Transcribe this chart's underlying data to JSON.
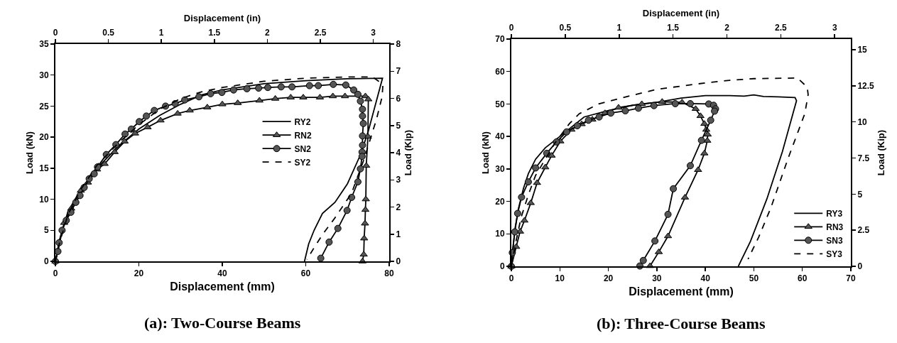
{
  "chart_data": [
    {
      "type": "line",
      "title": "(a): Two-Course Beams",
      "xlabel": "Displacement (mm)",
      "x2label": "Displacement (in)",
      "ylabel": "Load (kN)",
      "y2label": "Load (Kip)",
      "xlim": [
        0,
        80
      ],
      "xticks": [
        0,
        20,
        40,
        60,
        80
      ],
      "ylim": [
        0,
        35
      ],
      "yticks": [
        0,
        5,
        10,
        15,
        20,
        25,
        30,
        35
      ],
      "x2lim": [
        0,
        3.15
      ],
      "x2ticks": [
        0,
        0.5,
        1,
        1.5,
        2,
        2.5,
        3
      ],
      "y2lim": [
        0,
        8
      ],
      "y2ticks": [
        0,
        1,
        2,
        3,
        4,
        5,
        6,
        7,
        8
      ],
      "grid": false,
      "legend": "right",
      "series": [
        {
          "name": "RY2",
          "color": "#000000",
          "marker": "none",
          "line_style": "solid",
          "x": [
            0,
            1,
            3,
            6,
            10,
            15,
            20,
            25,
            30,
            35,
            40,
            50,
            60,
            70,
            78.4,
            77,
            75,
            73.2,
            70,
            67,
            64,
            62,
            60.7,
            59.7
          ],
          "values": [
            0,
            3.5,
            8,
            11.5,
            15,
            18.5,
            21.3,
            23.5,
            25.3,
            26.8,
            27.6,
            28.6,
            29.1,
            29.4,
            29.5,
            26,
            21,
            17.3,
            12.5,
            9.5,
            7.7,
            5,
            2.8,
            0
          ]
        },
        {
          "name": "RN2",
          "color": "#000000",
          "marker": "triangle",
          "line_style": "solid",
          "x": [
            0,
            2.1,
            3.8,
            6.1,
            7.8,
            10,
            11.8,
            14.2,
            16.6,
            19.1,
            22.1,
            25.2,
            29.3,
            32.2,
            36.4,
            40,
            43.7,
            48.9,
            52.7,
            56.4,
            59.4,
            63.4,
            66.5,
            69.4,
            74.3,
            75,
            74.9,
            74.5,
            74.4,
            74.3,
            74.2,
            74,
            73.9,
            73.6
          ],
          "values": [
            0,
            6.2,
            8.5,
            11.4,
            12.7,
            14.8,
            15.7,
            17.6,
            19.3,
            20.6,
            21.6,
            22.7,
            23.8,
            24.3,
            24.8,
            25.3,
            25.5,
            25.9,
            26.2,
            26.4,
            26.4,
            26.4,
            26.6,
            26.6,
            26.6,
            26.1,
            20.1,
            15.4,
            10,
            8.3,
            6.1,
            3.7,
            1.1,
            0
          ]
        },
        {
          "name": "SN2",
          "color": "#000000",
          "marker": "circle",
          "line_style": "solid",
          "x": [
            0,
            0.6,
            0.9,
            1.6,
            2.6,
            3.7,
            4.9,
            5.9,
            6.9,
            8.1,
            9.3,
            10.1,
            12.2,
            14.5,
            16.7,
            18.2,
            20.1,
            21.8,
            23.7,
            26.4,
            28.7,
            31,
            34.4,
            37.2,
            39.9,
            42.7,
            45.9,
            48.7,
            50.9,
            54.1,
            56.7,
            60.9,
            63,
            66.6,
            69.6,
            71.5,
            72.5,
            73.1,
            73.6,
            73.6,
            73.8,
            73.6,
            73.6,
            73.5,
            73.5,
            73.1,
            72.5,
            71,
            69.9,
            67.7,
            65.6,
            63.6
          ],
          "values": [
            0,
            1.6,
            3,
            5,
            6.6,
            7.9,
            9.5,
            10.6,
            11.9,
            13.3,
            14.1,
            15.2,
            17.2,
            18.8,
            20.5,
            21.3,
            22.5,
            23.4,
            24.3,
            25,
            25.4,
            26,
            26.5,
            27,
            27.2,
            27.6,
            27.8,
            27.9,
            28,
            28.1,
            28.1,
            28.3,
            28.3,
            28.5,
            28.4,
            27.6,
            26.9,
            25.8,
            24.5,
            23.4,
            22.2,
            20.2,
            18.7,
            17.6,
            16.9,
            14.9,
            12.8,
            10.3,
            8.2,
            5.3,
            3.1,
            0.5
          ]
        },
        {
          "name": "SY2",
          "color": "#000000",
          "marker": "none",
          "line_style": "dashed",
          "x": [
            0,
            1,
            3,
            6,
            10,
            15,
            20,
            25,
            30,
            35,
            40,
            50,
            60,
            70,
            76,
            78.5,
            78.3,
            77,
            74,
            71,
            67,
            64,
            62,
            60.3
          ],
          "values": [
            0,
            3,
            7.5,
            11.5,
            15.5,
            19,
            22,
            24.5,
            26.2,
            27.3,
            28,
            29,
            29.5,
            29.7,
            29.7,
            28.5,
            26.5,
            23,
            16.5,
            11,
            7,
            4.3,
            2.2,
            0.3
          ]
        }
      ]
    },
    {
      "type": "line",
      "title": "(b): Three-Course Beams",
      "xlabel": "Displacement (mm)",
      "x2label": "Displacement (in)",
      "ylabel": "Load (kN)",
      "y2label": "Load (Kip)",
      "xlim": [
        0,
        70
      ],
      "xticks": [
        0,
        10,
        20,
        30,
        40,
        50,
        60,
        70
      ],
      "ylim": [
        0,
        70
      ],
      "yticks": [
        0,
        10,
        20,
        30,
        40,
        50,
        60,
        70
      ],
      "x2lim": [
        0,
        3.15
      ],
      "x2ticks": [
        0,
        0.5,
        1,
        1.5,
        2,
        2.5,
        3
      ],
      "y2lim": [
        0,
        15.74
      ],
      "y2ticks": [
        0,
        2.5,
        5,
        7.5,
        10,
        12.5,
        15
      ],
      "grid": false,
      "legend": "bottom right",
      "series": [
        {
          "name": "RY3",
          "color": "#000000",
          "marker": "none",
          "line_style": "solid",
          "x": [
            0,
            0.3,
            0.8,
            1.5,
            2.5,
            3.5,
            5,
            7,
            10,
            15,
            20,
            25,
            30,
            35,
            40,
            45,
            48,
            50,
            52,
            55,
            58.5,
            58.8,
            55.9,
            52.7,
            49.3,
            46.8
          ],
          "values": [
            0,
            5,
            12,
            18,
            24,
            28.5,
            33,
            36.5,
            40,
            46,
            48,
            49.6,
            50.5,
            51.8,
            52.6,
            52.6,
            52.4,
            52.8,
            52.3,
            52.2,
            52,
            51,
            35.4,
            20.8,
            7.7,
            0
          ]
        },
        {
          "name": "RN3",
          "color": "#000000",
          "marker": "triangle",
          "line_style": "solid",
          "x": [
            0,
            1,
            1.8,
            2.7,
            4,
            5.3,
            7,
            8.3,
            10.1,
            12.4,
            14.5,
            16.7,
            19.3,
            22.1,
            26.9,
            31.1,
            35.2,
            38,
            39,
            39.8,
            40.2,
            40.5,
            40.4,
            39.8,
            38.5,
            35.8,
            32.3,
            30.4,
            28.6
          ],
          "values": [
            0,
            6,
            10.7,
            14.1,
            19.5,
            25.7,
            30.5,
            34.1,
            38.5,
            42.1,
            43.8,
            45.2,
            47.2,
            48.9,
            50,
            50.7,
            50.5,
            48.5,
            46.3,
            43.9,
            42.1,
            40.6,
            38.7,
            34.8,
            29.7,
            21.2,
            9.3,
            4.4,
            0.1
          ]
        },
        {
          "name": "SN3",
          "color": "#000000",
          "marker": "circle",
          "line_style": "solid",
          "x": [
            0,
            0.2,
            0.7,
            1.3,
            2.1,
            3.5,
            5,
            7.3,
            9.3,
            11.4,
            13.6,
            15.9,
            18.1,
            20.5,
            23.5,
            26.2,
            29.4,
            33.8,
            36.9,
            40.7,
            41.7,
            42.1,
            41.9,
            41.1,
            39.2,
            36.9,
            33.4,
            32.3,
            29.6,
            27.2,
            26.5
          ],
          "values": [
            0,
            4.2,
            10.6,
            16.3,
            21.3,
            26,
            30.3,
            34.8,
            38.3,
            41.4,
            43.3,
            45,
            46,
            47.2,
            47.9,
            48.7,
            49.5,
            50.1,
            50.1,
            50,
            49.6,
            48.5,
            47.8,
            45,
            38.8,
            31,
            23.9,
            16,
            7.8,
            1.8,
            0.1
          ]
        },
        {
          "name": "SY3",
          "color": "#000000",
          "marker": "none",
          "line_style": "dashed",
          "x": [
            0,
            1,
            2,
            3.5,
            5,
            7,
            9,
            11,
            12,
            14,
            18,
            25,
            30,
            40,
            45,
            50,
            59,
            61,
            61.2,
            60.5,
            57,
            53.5,
            51,
            48.8
          ],
          "values": [
            0,
            8,
            15,
            22,
            28,
            33,
            38,
            42,
            44,
            47,
            50,
            52.7,
            54.5,
            56.5,
            57.3,
            57.8,
            58,
            55.2,
            52.9,
            47,
            33,
            18,
            9,
            2.2
          ]
        }
      ]
    }
  ]
}
